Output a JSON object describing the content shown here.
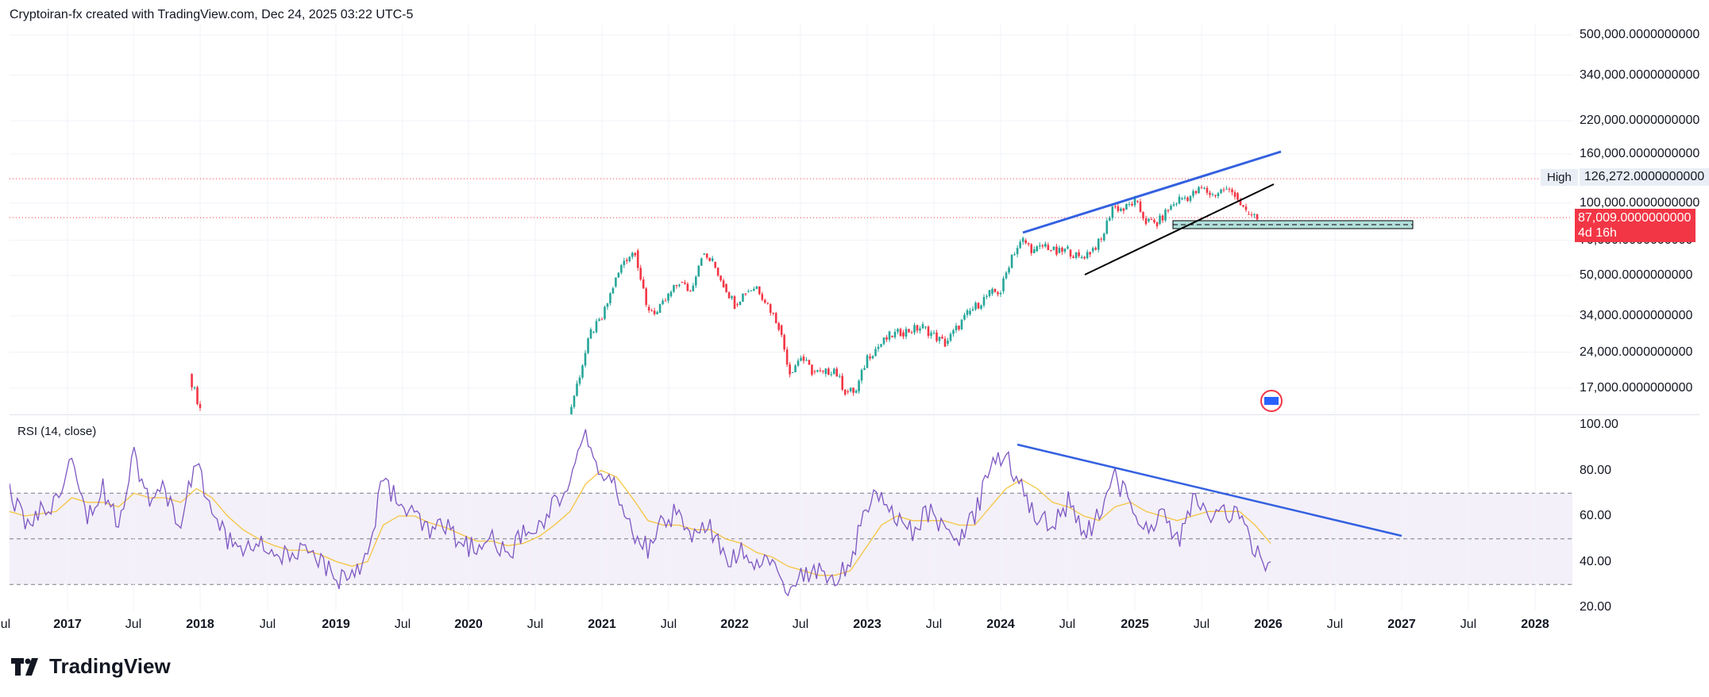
{
  "header": {
    "text": "Cryptoiran-fx created with TradingView.com, Dec 24, 2025 03:22 UTC-5"
  },
  "brand": {
    "name": "TradingView",
    "logo_icon": "tradingview-logo-icon"
  },
  "colors": {
    "up": "#26a69a",
    "down": "#f23645",
    "rsi": "#7e57c2",
    "rsi_ma": "#f5c542",
    "trendline": "#3461e0",
    "support": "#000000",
    "zone": "#b2dfdb"
  },
  "markers": {
    "high_label": "High",
    "high_value": "126,272.0000000000",
    "last_price": "87,009.0000000000",
    "countdown": "4d 16h"
  },
  "chart_data": [
    {
      "type": "candlestick",
      "title": "",
      "scale": "log",
      "y_ticks": [
        500000,
        340000,
        220000,
        160000,
        100000,
        70000,
        50000,
        34000,
        24000,
        17000
      ],
      "y_tick_labels": [
        "500,000.0000000000",
        "340,000.0000000000",
        "220,000.0000000000",
        "160,000.0000000000",
        "100,000.0000000000",
        "70,000.0000000000",
        "50,000.0000000000",
        "34,000.0000000000",
        "24,000.0000000000",
        "17,000.0000000000"
      ],
      "x_ticks": [
        "Jul",
        "2017",
        "Jul",
        "2018",
        "Jul",
        "2019",
        "Jul",
        "2020",
        "Jul",
        "2021",
        "Jul",
        "2022",
        "Jul",
        "2023",
        "Jul",
        "2024",
        "Jul",
        "2025",
        "Jul",
        "2026",
        "Jul",
        "2027",
        "Jul",
        "2028"
      ],
      "high": 126272,
      "last": 87009,
      "series_approx": [
        [
          "2017-12",
          19500
        ],
        [
          "2018-01",
          14000
        ],
        [
          "2020-10",
          13000
        ],
        [
          "2020-12",
          29000
        ],
        [
          "2021-01",
          33000
        ],
        [
          "2021-02",
          45000
        ],
        [
          "2021-03",
          58000
        ],
        [
          "2021-04",
          63500
        ],
        [
          "2021-05",
          37000
        ],
        [
          "2021-06",
          35000
        ],
        [
          "2021-07",
          41000
        ],
        [
          "2021-08",
          47000
        ],
        [
          "2021-09",
          43000
        ],
        [
          "2021-10",
          61000
        ],
        [
          "2021-11",
          57000
        ],
        [
          "2021-12",
          46000
        ],
        [
          "2022-01",
          38000
        ],
        [
          "2022-02",
          43000
        ],
        [
          "2022-03",
          45000
        ],
        [
          "2022-04",
          38000
        ],
        [
          "2022-05",
          31000
        ],
        [
          "2022-06",
          19800
        ],
        [
          "2022-07",
          23000
        ],
        [
          "2022-08",
          20000
        ],
        [
          "2022-09",
          19500
        ],
        [
          "2022-10",
          20500
        ],
        [
          "2022-11",
          16500
        ],
        [
          "2022-12",
          16500
        ],
        [
          "2023-01",
          23000
        ],
        [
          "2023-03",
          28000
        ],
        [
          "2023-04",
          29000
        ],
        [
          "2023-06",
          30500
        ],
        [
          "2023-08",
          26000
        ],
        [
          "2023-10",
          34500
        ],
        [
          "2023-12",
          42000
        ],
        [
          "2024-01",
          43000
        ],
        [
          "2024-02",
          61000
        ],
        [
          "2024-03",
          70000
        ],
        [
          "2024-04",
          63000
        ],
        [
          "2024-05",
          67000
        ],
        [
          "2024-06",
          62000
        ],
        [
          "2024-07",
          64000
        ],
        [
          "2024-08",
          59000
        ],
        [
          "2024-09",
          63000
        ],
        [
          "2024-10",
          70000
        ],
        [
          "2024-11",
          97000
        ],
        [
          "2024-12",
          94000
        ],
        [
          "2025-01",
          102000
        ],
        [
          "2025-02",
          84000
        ],
        [
          "2025-03",
          82000
        ],
        [
          "2025-04",
          94000
        ],
        [
          "2025-05",
          104000
        ],
        [
          "2025-06",
          107000
        ],
        [
          "2025-07",
          115000
        ],
        [
          "2025-08",
          108000
        ],
        [
          "2025-09",
          114000
        ],
        [
          "2025-10",
          110000
        ],
        [
          "2025-11",
          90000
        ],
        [
          "2025-12",
          87009
        ]
      ]
    },
    {
      "type": "line",
      "title": "RSI (14, close)",
      "ylim": [
        20,
        100
      ],
      "y_ticks": [
        100,
        80,
        60,
        40,
        20
      ],
      "y_tick_labels": [
        "100.00",
        "80.00",
        "60.00",
        "40.00",
        "20.00"
      ],
      "bands": {
        "upper": 70,
        "middle": 50,
        "lower": 30
      },
      "series": [
        {
          "name": "",
          "values": [
            70,
            56,
            62,
            66,
            90,
            60,
            72,
            58,
            88,
            64,
            72,
            55,
            86,
            60,
            50,
            45,
            48,
            44,
            42,
            44,
            40,
            32,
            36,
            42,
            78,
            64,
            60,
            52,
            55,
            48,
            45,
            50,
            42,
            52,
            56,
            66,
            74,
            96,
            78,
            72,
            52,
            46,
            58,
            62,
            50,
            55,
            40,
            44,
            36,
            42,
            28,
            34,
            36,
            32,
            40,
            64,
            70,
            58,
            54,
            62,
            56,
            50,
            60,
            82,
            88,
            72,
            60,
            56,
            66,
            50,
            62,
            78,
            64,
            54,
            60,
            48,
            68,
            58,
            62,
            60,
            44,
            36
          ]
        },
        {
          "name": "",
          "values": [
            62,
            60,
            61,
            62,
            68,
            66,
            66,
            64,
            70,
            68,
            68,
            66,
            72,
            68,
            60,
            54,
            50,
            47,
            45,
            45,
            43,
            40,
            38,
            40,
            56,
            60,
            60,
            57,
            55,
            52,
            49,
            49,
            47,
            48,
            51,
            56,
            62,
            74,
            80,
            77,
            68,
            58,
            56,
            56,
            54,
            54,
            50,
            48,
            44,
            42,
            38,
            36,
            34,
            34,
            36,
            46,
            56,
            60,
            58,
            58,
            58,
            56,
            56,
            64,
            72,
            76,
            72,
            66,
            64,
            60,
            58,
            64,
            66,
            62,
            60,
            58,
            60,
            62,
            62,
            62,
            56,
            48
          ]
        }
      ]
    }
  ]
}
